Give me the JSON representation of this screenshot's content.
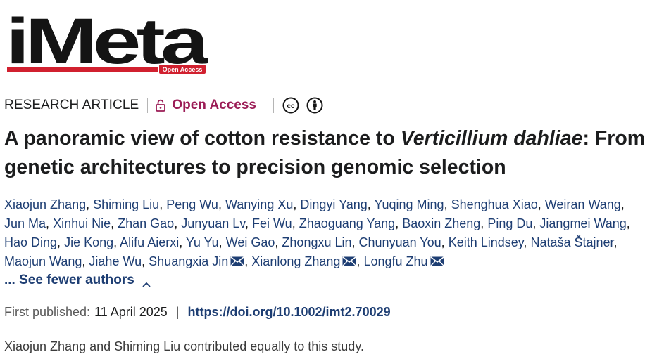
{
  "journal": {
    "logo_text": "iMeta",
    "logo_badge": "Open Access"
  },
  "meta": {
    "article_type": "RESEARCH ARTICLE",
    "open_access_label": "Open Access",
    "license_icons": [
      "cc-icon",
      "by-attribution-icon"
    ]
  },
  "title": {
    "part1": "A panoramic view of cotton resistance to ",
    "italic": "Verticillium dahliae",
    "part2": ": From genetic architectures to precision genomic selection"
  },
  "authors": [
    {
      "name": "Xiaojun Zhang",
      "corresponding": false
    },
    {
      "name": "Shiming Liu",
      "corresponding": false
    },
    {
      "name": "Peng Wu",
      "corresponding": false
    },
    {
      "name": "Wanying Xu",
      "corresponding": false
    },
    {
      "name": "Dingyi Yang",
      "corresponding": false
    },
    {
      "name": "Yuqing Ming",
      "corresponding": false
    },
    {
      "name": "Shenghua Xiao",
      "corresponding": false
    },
    {
      "name": "Weiran Wang",
      "corresponding": false
    },
    {
      "name": "Jun Ma",
      "corresponding": false
    },
    {
      "name": "Xinhui Nie",
      "corresponding": false
    },
    {
      "name": "Zhan Gao",
      "corresponding": false
    },
    {
      "name": "Junyuan Lv",
      "corresponding": false
    },
    {
      "name": "Fei Wu",
      "corresponding": false
    },
    {
      "name": "Zhaoguang Yang",
      "corresponding": false
    },
    {
      "name": "Baoxin Zheng",
      "corresponding": false
    },
    {
      "name": "Ping Du",
      "corresponding": false
    },
    {
      "name": "Jiangmei Wang",
      "corresponding": false
    },
    {
      "name": "Hao Ding",
      "corresponding": false
    },
    {
      "name": "Jie Kong",
      "corresponding": false
    },
    {
      "name": "Alifu Aierxi",
      "corresponding": false
    },
    {
      "name": "Yu Yu",
      "corresponding": false
    },
    {
      "name": "Wei Gao",
      "corresponding": false
    },
    {
      "name": "Zhongxu Lin",
      "corresponding": false
    },
    {
      "name": "Chunyuan You",
      "corresponding": false
    },
    {
      "name": "Keith Lindsey",
      "corresponding": false
    },
    {
      "name": "Nataša Štajner",
      "corresponding": false
    },
    {
      "name": "Maojun Wang",
      "corresponding": false
    },
    {
      "name": "Jiahe Wu",
      "corresponding": false
    },
    {
      "name": "Shuangxia Jin",
      "corresponding": true
    },
    {
      "name": "Xianlong Zhang",
      "corresponding": true
    },
    {
      "name": "Longfu Zhu",
      "corresponding": true
    }
  ],
  "see_fewer_label": "... See fewer authors",
  "publication": {
    "label": "First published:",
    "date": "11 April 2025",
    "separator": "|",
    "doi": "https://doi.org/10.1002/imt2.70029"
  },
  "note": "Xiaojun Zhang and Shiming Liu contributed equally to this study.",
  "colors": {
    "link": "#1e3e73",
    "open_access": "#9b1c56",
    "logo_red": "#d1202f",
    "text": "#1c1d1e"
  }
}
